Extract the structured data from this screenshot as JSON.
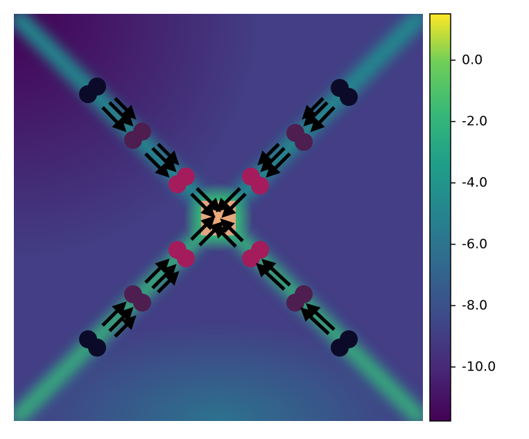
{
  "chart_data": {
    "type": "heatmap",
    "colormap": "viridis",
    "colorbar_lim": [
      -11.76,
      1.51
    ],
    "colorbar_ticks": [
      {
        "value": 0,
        "label": "0.0"
      },
      {
        "value": -2,
        "label": "-2.0"
      },
      {
        "value": -4,
        "label": "-4.0"
      },
      {
        "value": -6,
        "label": "-6.0"
      },
      {
        "value": -8,
        "label": "-8.0"
      },
      {
        "value": -10,
        "label": "-10.0"
      }
    ]
  }
}
